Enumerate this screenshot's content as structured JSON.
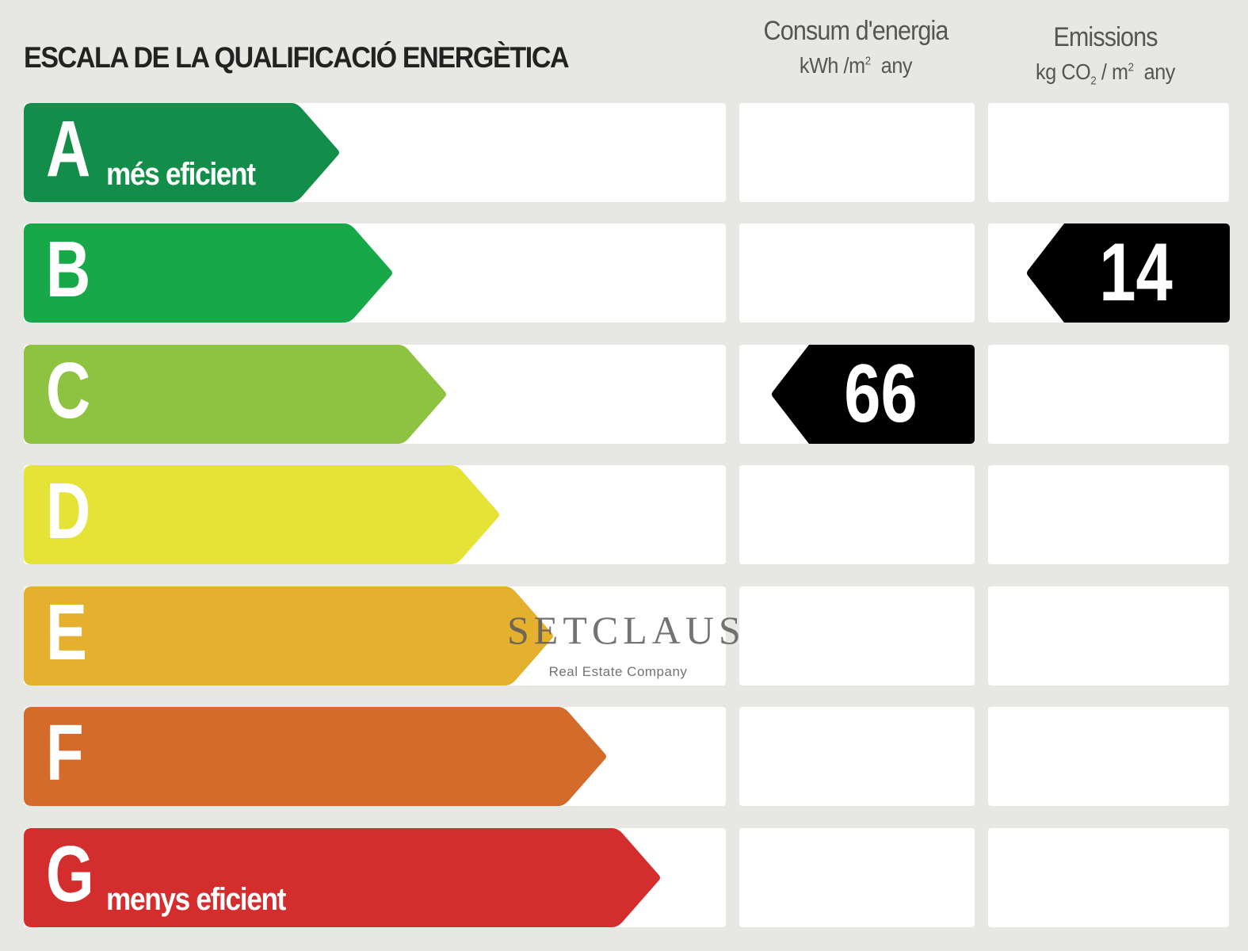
{
  "header": {
    "title": "ESCALA DE LA QUALIFICACIÓ ENERGÈTICA",
    "consum": {
      "title": "Consum d'energia",
      "unit_prefix": "kWh /m",
      "unit_sup": "2",
      "unit_suffix": "any"
    },
    "emissions": {
      "title": "Emissions",
      "unit_prefix": "kg CO",
      "unit_sub": "2",
      "unit_mid": " / m",
      "unit_sup": "2",
      "unit_suffix": "any"
    }
  },
  "bands": [
    {
      "letter": "A",
      "text": "més eficient",
      "color": "#138e4a"
    },
    {
      "letter": "B",
      "text": "",
      "color": "#17a84a"
    },
    {
      "letter": "C",
      "text": "",
      "color": "#8dc340"
    },
    {
      "letter": "D",
      "text": "",
      "color": "#e6e337"
    },
    {
      "letter": "E",
      "text": "",
      "color": "#e5b02d"
    },
    {
      "letter": "F",
      "text": "",
      "color": "#d36b2b"
    },
    {
      "letter": "G",
      "text": "menys eficient",
      "color": "#d42d2e"
    }
  ],
  "ratings": {
    "consum": {
      "value": "66",
      "class": "C"
    },
    "emissions": {
      "value": "14",
      "class": "B"
    }
  },
  "watermark": {
    "brand": "SETCLAUS",
    "tagline": "Real Estate Company"
  }
}
